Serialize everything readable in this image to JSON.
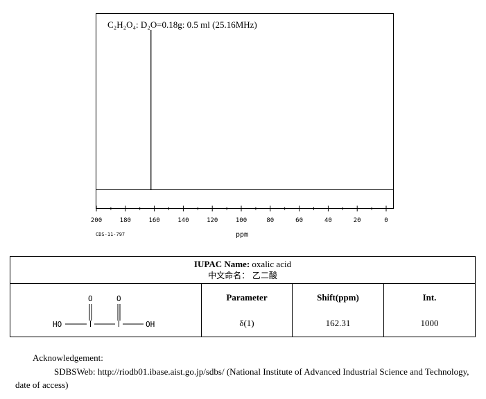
{
  "chart_data": {
    "type": "nmr_spectrum",
    "title": "C₂H₂O₄: D₂O=0.18g: 0.5 ml (25.16MHz)",
    "xlabel": "ppm",
    "xlim": [
      200,
      0
    ],
    "x_ticks": [
      "200",
      "180",
      "160",
      "140",
      "120",
      "100",
      "80",
      "60",
      "40",
      "20",
      "0"
    ],
    "x_tick_values": [
      200,
      180,
      160,
      140,
      120,
      100,
      80,
      60,
      40,
      20,
      0
    ],
    "peaks": [
      {
        "shift": 162.31,
        "intensity": 1000
      }
    ],
    "code": "CDS-11-797"
  },
  "compound": {
    "iupac_label": "IUPAC Name:",
    "iupac_value": "oxalic acid",
    "chinese_label": "中文命名：",
    "chinese_value": "乙二酸",
    "structure": {
      "left_group": "HO",
      "right_group": "OH",
      "top_atoms": [
        "O",
        "O"
      ]
    }
  },
  "table": {
    "headers": [
      "Parameter",
      "Shift(ppm)",
      "Int."
    ],
    "rows": [
      [
        "δ(1)",
        "162.31",
        "1000"
      ]
    ]
  },
  "footer": {
    "ack": "Acknowledgement:",
    "sdbs": "SDBSWeb: http://riodb01.ibase.aist.go.jp/sdbs/ (National Institute of Advanced Industrial Science and Technology, date of access)"
  }
}
